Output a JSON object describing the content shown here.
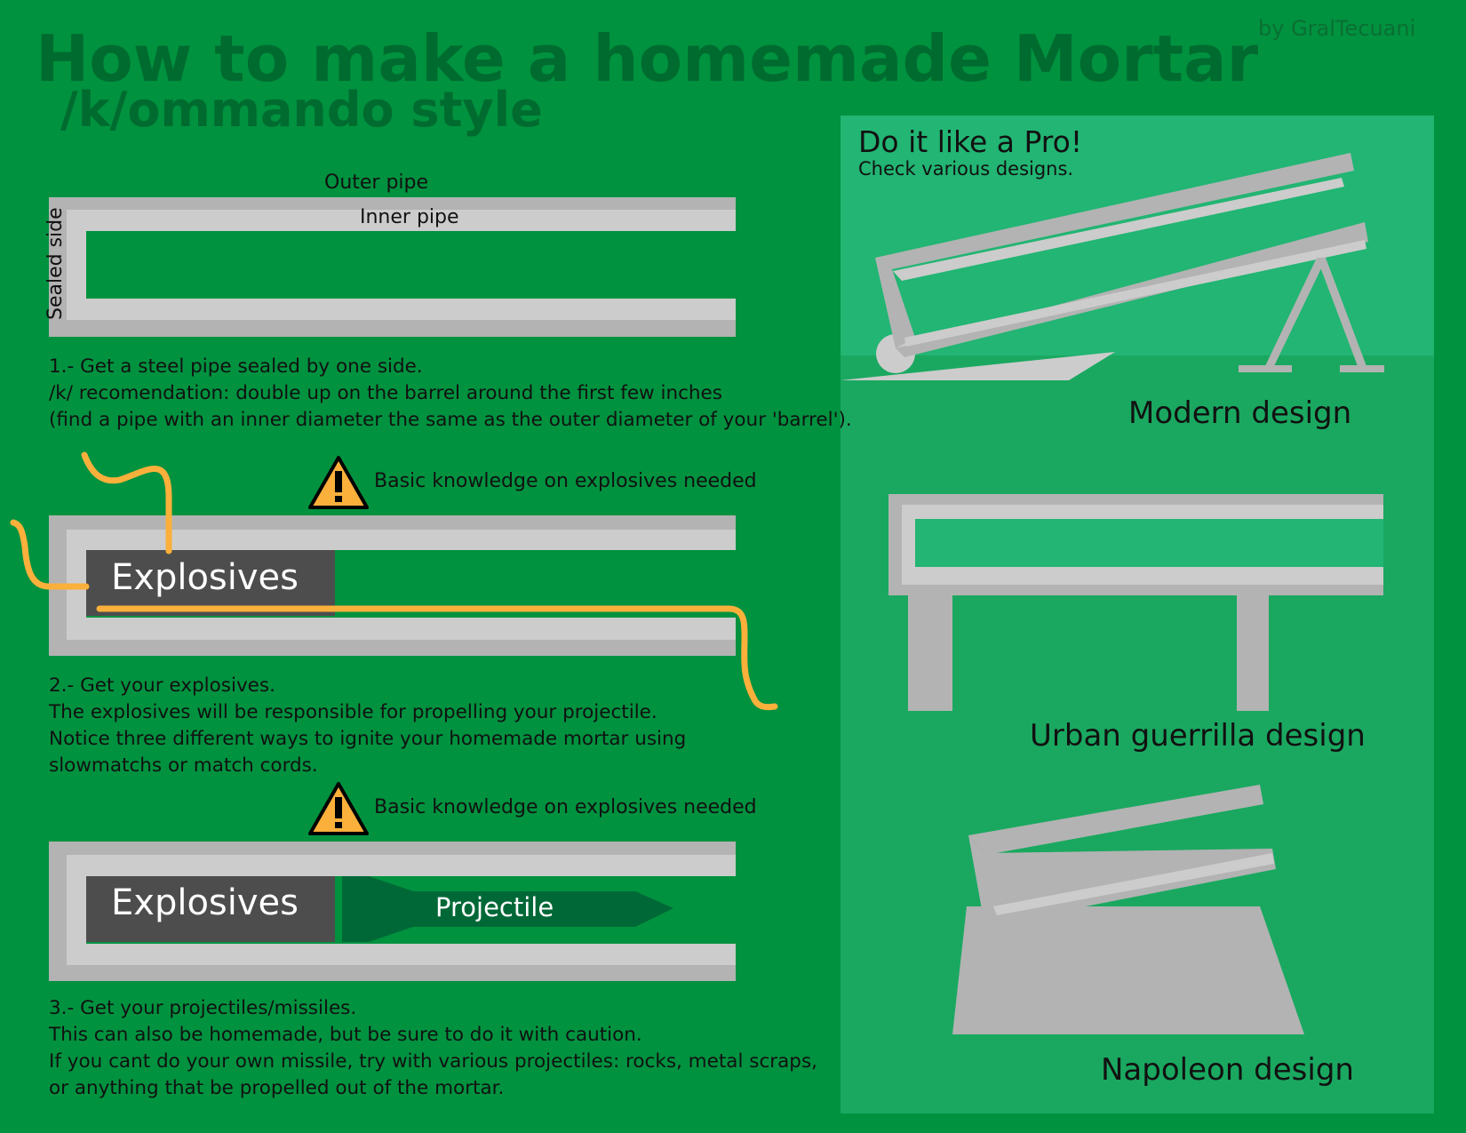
{
  "header": {
    "title": "How to make a homemade Mortar",
    "subtitle": "/k/ommando style",
    "author": "by GralTecuani"
  },
  "labels": {
    "outer_pipe": "Outer pipe",
    "inner_pipe": "Inner pipe",
    "sealed_side": "Sealed side",
    "explosives": "Explosives",
    "projectile": "Projectile"
  },
  "warning_text": "Basic knowledge on explosives needed",
  "steps": [
    {
      "lines": [
        "1.- Get a steel pipe sealed by one side.",
        "/k/ recomendation:  double up on the barrel around the first few inches",
        "(find a pipe with an inner diameter the same as the outer diameter of your 'barrel')."
      ]
    },
    {
      "lines": [
        "2.- Get your explosives.",
        "The explosives will be responsible for propelling your projectile.",
        "Notice three different ways to ignite your homemade mortar using",
        "slowmatchs or match cords."
      ]
    },
    {
      "lines": [
        "3.- Get your projectiles/missiles.",
        "This can also be homemade, but be sure to do it with caution.",
        "If you cant do your own missile, try with various projectiles: rocks, metal scraps,",
        "or anything that be propelled out of the mortar."
      ]
    }
  ],
  "panel": {
    "title": "Do it like a Pro!",
    "subtitle": "Check various designs.",
    "designs": [
      "Modern design",
      "Urban guerrilla design",
      "Napoleon design"
    ]
  },
  "colors": {
    "background": "#00923f",
    "panel": "#22b573",
    "pipe_dark": "#b3b3b3",
    "pipe_light": "#cccccc",
    "explosive": "#4d4d4d",
    "fuse": "#fbb03b",
    "projectile": "#006837",
    "title": "#006b2f"
  }
}
